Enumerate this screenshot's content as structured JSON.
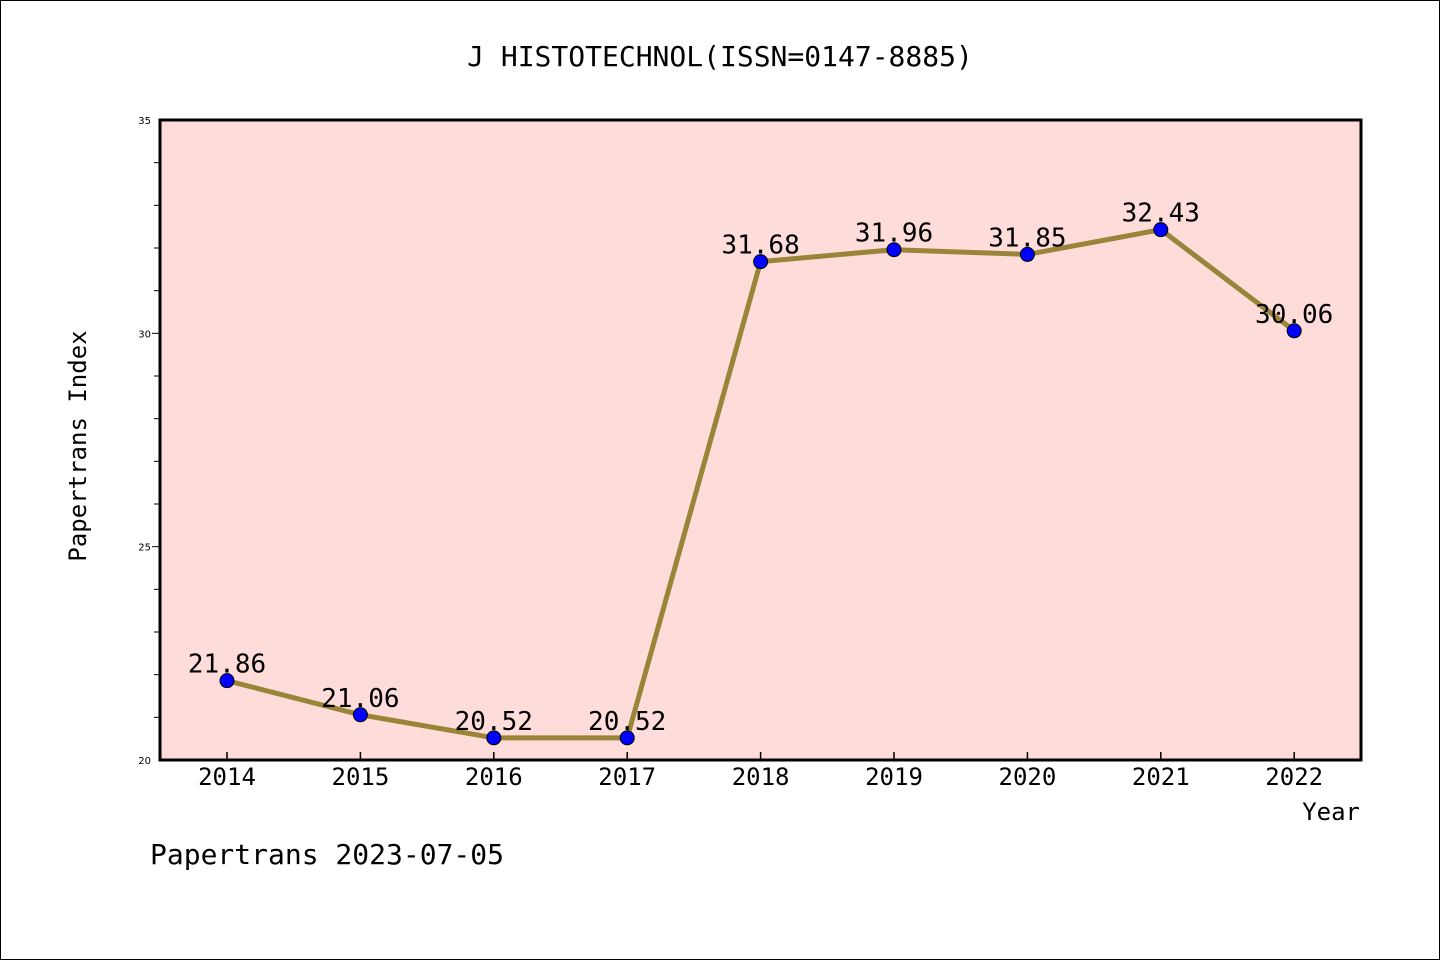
{
  "chart_data": {
    "type": "line",
    "title": "J HISTOTECHNOL(ISSN=0147-8885)",
    "xlabel": "Year",
    "ylabel": "Papertrans Index",
    "categories": [
      "2014",
      "2015",
      "2016",
      "2017",
      "2018",
      "2019",
      "2020",
      "2021",
      "2022"
    ],
    "series": [
      {
        "values": [
          21.86,
          21.06,
          20.52,
          20.52,
          31.68,
          31.96,
          31.85,
          32.43,
          30.06
        ]
      }
    ],
    "data_labels": [
      "21.86",
      "21.06",
      "20.52",
      "20.52",
      "31.68",
      "31.96",
      "31.85",
      "32.43",
      "30.06"
    ],
    "ylim": [
      20,
      35
    ],
    "yticks": [
      "20",
      "25",
      "30",
      "35"
    ],
    "grid": false,
    "colors": {
      "plot_background": "#fddcda",
      "line": "#9a8438",
      "marker": "#0000ff",
      "axis": "#000000"
    }
  },
  "footer": {
    "text": "Papertrans 2023-07-05"
  }
}
